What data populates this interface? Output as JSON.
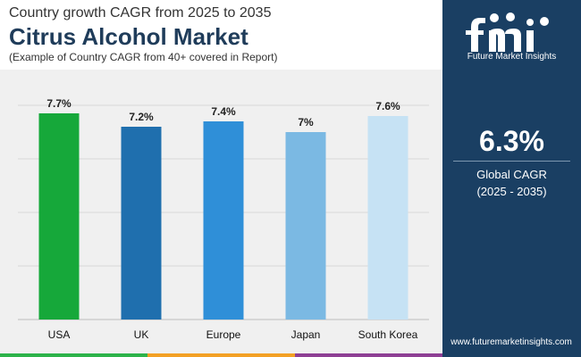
{
  "header": {
    "subtitle": "Country growth CAGR from 2025 to 2035",
    "title": "Citrus Alcohol Market",
    "note": "(Example of Country CAGR from 40+ covered in Report)"
  },
  "panel": {
    "brand": "Future Market Insights",
    "cagr_value": "6.3%",
    "cagr_label": "Global CAGR",
    "cagr_period": "(2025 - 2035)",
    "website": "www.futuremarketinsights.com"
  },
  "colors": {
    "panel_bg": "#1a3f63",
    "plot_bg": "#f0f0f0",
    "strip": [
      "#2db34a",
      "#f3a024",
      "#8e3f94",
      "#1a3f63"
    ]
  },
  "chart_data": {
    "type": "bar",
    "title": "Citrus Alcohol Market",
    "categories": [
      "USA",
      "UK",
      "Europe",
      "Japan",
      "South Korea"
    ],
    "values": [
      7.7,
      7.2,
      7.4,
      7.0,
      7.6
    ],
    "data_labels": [
      "7.7%",
      "7.2%",
      "7.4%",
      "7%",
      "7.6%"
    ],
    "bar_colors": [
      "#16a83a",
      "#1f6fae",
      "#2f8fd8",
      "#7bb9e3",
      "#c6e2f4"
    ],
    "ylim": [
      0,
      8
    ],
    "xlabel": "",
    "ylabel": "",
    "grid": true,
    "legend": "none"
  }
}
